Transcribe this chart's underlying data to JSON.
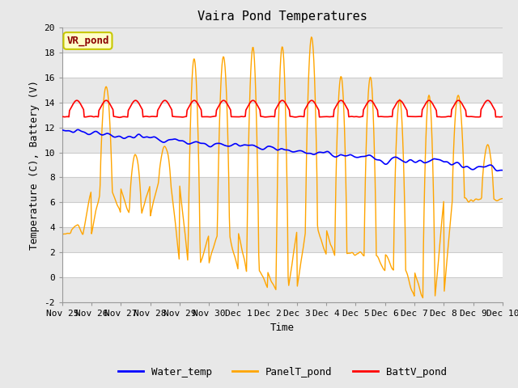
{
  "title": "Vaira Pond Temperatures",
  "xlabel": "Time",
  "ylabel": "Temperature (C), Battery (V)",
  "ylim": [
    -2,
    20
  ],
  "yticks": [
    -2,
    0,
    2,
    4,
    6,
    8,
    10,
    12,
    14,
    16,
    18,
    20
  ],
  "fig_bg": "#e8e8e8",
  "plot_bg": "#ffffff",
  "band_color": "#e8e8e8",
  "grid_line_color": "#cccccc",
  "water_color": "#0000ff",
  "panel_color": "#ffa500",
  "batt_color": "#ff0000",
  "site_label": "VR_pond",
  "site_label_fg": "#8b0000",
  "site_label_bg": "#ffffc8",
  "site_label_border": "#c8c800",
  "xtick_labels": [
    "Nov 25",
    "Nov 26",
    "Nov 27",
    "Nov 28",
    "Nov 29",
    "Nov 30",
    "Dec 1",
    "Dec 2",
    "Dec 3",
    "Dec 4",
    "Dec 5",
    "Dec 6",
    "Dec 7",
    "Dec 8",
    "Dec 9",
    "Dec 10"
  ],
  "legend_labels": [
    "Water_temp",
    "PanelT_pond",
    "BattV_pond"
  ],
  "title_fontsize": 11,
  "axis_label_fontsize": 9,
  "tick_fontsize": 8,
  "legend_fontsize": 9
}
